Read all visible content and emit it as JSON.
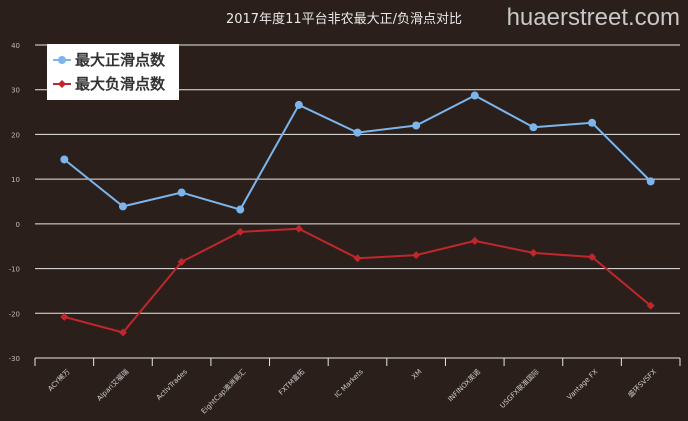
{
  "chart_data": {
    "type": "line",
    "title": "2017年度11平台非农最大正/负滑点对比",
    "categories": [
      "ACY稀万",
      "Alpari艾福瑞",
      "ActivTrades",
      "EightCap澳洲易汇",
      "FXTM富拓",
      "IC Markets",
      "XM",
      "INFINOX英诺",
      "USGFX联准国际",
      "Vantage FX",
      "盛环SVSFX"
    ],
    "series": [
      {
        "name": "最大正滑点数",
        "color": "#7cb5ec",
        "marker": "circle",
        "values": [
          14.4,
          3.9,
          7.0,
          3.2,
          26.6,
          20.4,
          22.0,
          28.7,
          21.6,
          22.6,
          9.5
        ]
      },
      {
        "name": "最大负滑点数",
        "color": "#c0272d",
        "marker": "diamond",
        "values": [
          -20.8,
          -24.3,
          -8.5,
          -1.8,
          -1.1,
          -7.7,
          -7.0,
          -3.8,
          -6.5,
          -7.4,
          -18.3
        ]
      }
    ],
    "ylim": [
      -30,
      40
    ],
    "yticks": [
      40,
      30,
      20,
      10,
      0,
      -10,
      -20,
      -30
    ],
    "grid": true,
    "legend_position": "top-left",
    "xlabel": "",
    "ylabel": ""
  },
  "watermark": "huaerstreet.com"
}
